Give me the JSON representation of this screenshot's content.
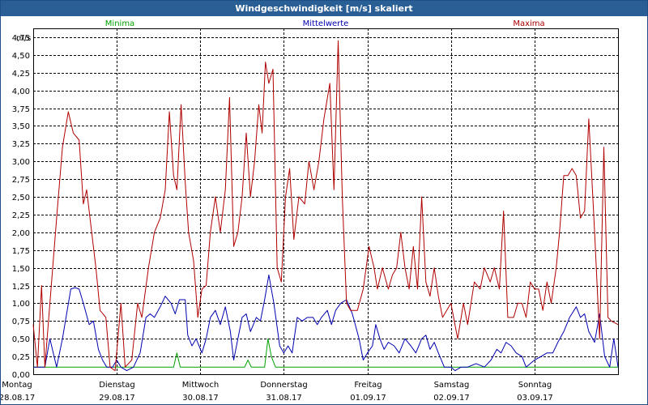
{
  "window": {
    "title": "Windgeschwindigkeit [m/s] skaliert"
  },
  "chart_data": {
    "type": "line",
    "title": "Windgeschwindigkeit [m/s] skaliert",
    "ylabel": "m/s",
    "ylim": [
      0,
      4.875
    ],
    "y_ticks": [
      "0,00",
      "0,25",
      "0,50",
      "0,75",
      "1,00",
      "1,25",
      "1,50",
      "1,75",
      "2,00",
      "2,25",
      "2,50",
      "2,75",
      "3,00",
      "3,25",
      "3,50",
      "3,75",
      "4,00",
      "4,25",
      "4,50",
      "4,75"
    ],
    "x_range": [
      0,
      7
    ],
    "x_ticks": [
      {
        "day": "Montag",
        "date": "28.08.17"
      },
      {
        "day": "Dienstag",
        "date": "29.08.17"
      },
      {
        "day": "Mittwoch",
        "date": "30.08.17"
      },
      {
        "day": "Donnerstag",
        "date": "31.08.17"
      },
      {
        "day": "Freitag",
        "date": "01.09.17"
      },
      {
        "day": "Samstag",
        "date": "02.09.17"
      },
      {
        "day": "Sonntag",
        "date": "03.09.17"
      }
    ],
    "grid": true,
    "series": [
      {
        "name": "Minima",
        "color": "#00a000",
        "points": [
          [
            0,
            0.1
          ],
          [
            1.68,
            0.1
          ],
          [
            1.72,
            0.3
          ],
          [
            1.76,
            0.1
          ],
          [
            2.53,
            0.1
          ],
          [
            2.57,
            0.2
          ],
          [
            2.61,
            0.1
          ],
          [
            2.77,
            0.1
          ],
          [
            2.81,
            0.5
          ],
          [
            2.85,
            0.25
          ],
          [
            2.9,
            0.1
          ],
          [
            7,
            0.1
          ]
        ]
      },
      {
        "name": "Mittelwerte",
        "color": "#0000b0",
        "points": [
          [
            0,
            0.1
          ],
          [
            0.14,
            0.1
          ],
          [
            0.2,
            0.5
          ],
          [
            0.28,
            0.1
          ],
          [
            0.35,
            0.5
          ],
          [
            0.45,
            1.2
          ],
          [
            0.5,
            1.22
          ],
          [
            0.55,
            1.2
          ],
          [
            0.6,
            1.0
          ],
          [
            0.67,
            0.7
          ],
          [
            0.72,
            0.75
          ],
          [
            0.78,
            0.35
          ],
          [
            0.83,
            0.2
          ],
          [
            0.88,
            0.1
          ],
          [
            0.95,
            0.1
          ],
          [
            1.0,
            0.2
          ],
          [
            1.05,
            0.1
          ],
          [
            1.12,
            0.05
          ],
          [
            1.2,
            0.1
          ],
          [
            1.28,
            0.3
          ],
          [
            1.35,
            0.8
          ],
          [
            1.4,
            0.85
          ],
          [
            1.45,
            0.8
          ],
          [
            1.52,
            0.95
          ],
          [
            1.58,
            1.1
          ],
          [
            1.65,
            1.0
          ],
          [
            1.7,
            0.85
          ],
          [
            1.75,
            1.05
          ],
          [
            1.82,
            1.05
          ],
          [
            1.85,
            0.55
          ],
          [
            1.9,
            0.4
          ],
          [
            1.95,
            0.5
          ],
          [
            2.02,
            0.3
          ],
          [
            2.07,
            0.5
          ],
          [
            2.12,
            0.8
          ],
          [
            2.18,
            0.9
          ],
          [
            2.24,
            0.7
          ],
          [
            2.3,
            0.95
          ],
          [
            2.36,
            0.6
          ],
          [
            2.4,
            0.2
          ],
          [
            2.45,
            0.5
          ],
          [
            2.5,
            0.8
          ],
          [
            2.55,
            0.85
          ],
          [
            2.6,
            0.6
          ],
          [
            2.67,
            0.8
          ],
          [
            2.72,
            0.75
          ],
          [
            2.77,
            1.05
          ],
          [
            2.82,
            1.4
          ],
          [
            2.88,
            1.0
          ],
          [
            2.95,
            0.4
          ],
          [
            3.0,
            0.3
          ],
          [
            3.05,
            0.4
          ],
          [
            3.1,
            0.3
          ],
          [
            3.16,
            0.8
          ],
          [
            3.22,
            0.75
          ],
          [
            3.28,
            0.8
          ],
          [
            3.35,
            0.8
          ],
          [
            3.4,
            0.7
          ],
          [
            3.45,
            0.8
          ],
          [
            3.52,
            0.9
          ],
          [
            3.57,
            0.7
          ],
          [
            3.62,
            0.9
          ],
          [
            3.68,
            1.0
          ],
          [
            3.75,
            1.05
          ],
          [
            3.82,
            0.85
          ],
          [
            3.9,
            0.5
          ],
          [
            3.95,
            0.2
          ],
          [
            4.0,
            0.3
          ],
          [
            4.06,
            0.4
          ],
          [
            4.1,
            0.7
          ],
          [
            4.15,
            0.5
          ],
          [
            4.2,
            0.35
          ],
          [
            4.25,
            0.45
          ],
          [
            4.32,
            0.4
          ],
          [
            4.38,
            0.3
          ],
          [
            4.45,
            0.5
          ],
          [
            4.52,
            0.4
          ],
          [
            4.58,
            0.3
          ],
          [
            4.65,
            0.5
          ],
          [
            4.7,
            0.55
          ],
          [
            4.75,
            0.35
          ],
          [
            4.8,
            0.45
          ],
          [
            4.85,
            0.3
          ],
          [
            4.92,
            0.1
          ],
          [
            5.0,
            0.1
          ],
          [
            5.05,
            0.05
          ],
          [
            5.12,
            0.1
          ],
          [
            5.2,
            0.1
          ],
          [
            5.3,
            0.15
          ],
          [
            5.4,
            0.1
          ],
          [
            5.48,
            0.2
          ],
          [
            5.55,
            0.35
          ],
          [
            5.6,
            0.3
          ],
          [
            5.66,
            0.45
          ],
          [
            5.72,
            0.4
          ],
          [
            5.78,
            0.3
          ],
          [
            5.85,
            0.25
          ],
          [
            5.9,
            0.1
          ],
          [
            6.0,
            0.2
          ],
          [
            6.08,
            0.25
          ],
          [
            6.15,
            0.3
          ],
          [
            6.22,
            0.3
          ],
          [
            6.28,
            0.45
          ],
          [
            6.35,
            0.6
          ],
          [
            6.42,
            0.8
          ],
          [
            6.5,
            0.95
          ],
          [
            6.55,
            0.8
          ],
          [
            6.6,
            0.85
          ],
          [
            6.65,
            0.6
          ],
          [
            6.72,
            0.45
          ],
          [
            6.78,
            0.85
          ],
          [
            6.84,
            0.25
          ],
          [
            6.9,
            0.1
          ],
          [
            6.95,
            0.5
          ],
          [
            7.0,
            0.1
          ]
        ]
      },
      {
        "name": "Maxima",
        "color": "#b00000",
        "points": [
          [
            0,
            0.7
          ],
          [
            0.05,
            0.1
          ],
          [
            0.1,
            1.25
          ],
          [
            0.14,
            0.1
          ],
          [
            0.2,
            1.0
          ],
          [
            0.28,
            2.2
          ],
          [
            0.35,
            3.2
          ],
          [
            0.42,
            3.7
          ],
          [
            0.48,
            3.4
          ],
          [
            0.55,
            3.3
          ],
          [
            0.6,
            2.4
          ],
          [
            0.64,
            2.6
          ],
          [
            0.7,
            2.0
          ],
          [
            0.75,
            1.5
          ],
          [
            0.8,
            0.9
          ],
          [
            0.87,
            0.8
          ],
          [
            0.92,
            0.1
          ],
          [
            0.98,
            0.05
          ],
          [
            1.05,
            1.0
          ],
          [
            1.1,
            0.1
          ],
          [
            1.18,
            0.2
          ],
          [
            1.25,
            1.0
          ],
          [
            1.3,
            0.8
          ],
          [
            1.38,
            1.5
          ],
          [
            1.45,
            2.0
          ],
          [
            1.52,
            2.2
          ],
          [
            1.58,
            2.6
          ],
          [
            1.63,
            3.7
          ],
          [
            1.68,
            2.8
          ],
          [
            1.72,
            2.6
          ],
          [
            1.77,
            3.8
          ],
          [
            1.82,
            2.7
          ],
          [
            1.86,
            2.0
          ],
          [
            1.92,
            1.6
          ],
          [
            1.97,
            0.8
          ],
          [
            2.02,
            1.2
          ],
          [
            2.07,
            1.25
          ],
          [
            2.12,
            2.0
          ],
          [
            2.18,
            2.5
          ],
          [
            2.24,
            2.0
          ],
          [
            2.3,
            2.6
          ],
          [
            2.35,
            3.9
          ],
          [
            2.4,
            1.8
          ],
          [
            2.45,
            2.0
          ],
          [
            2.5,
            2.5
          ],
          [
            2.55,
            3.4
          ],
          [
            2.6,
            2.5
          ],
          [
            2.65,
            3.0
          ],
          [
            2.7,
            3.8
          ],
          [
            2.74,
            3.4
          ],
          [
            2.78,
            4.4
          ],
          [
            2.82,
            4.1
          ],
          [
            2.87,
            4.3
          ],
          [
            2.92,
            1.5
          ],
          [
            2.97,
            1.3
          ],
          [
            3.02,
            2.5
          ],
          [
            3.07,
            2.9
          ],
          [
            3.12,
            1.9
          ],
          [
            3.18,
            2.5
          ],
          [
            3.25,
            2.4
          ],
          [
            3.3,
            3.0
          ],
          [
            3.36,
            2.6
          ],
          [
            3.42,
            3.0
          ],
          [
            3.48,
            3.6
          ],
          [
            3.55,
            4.1
          ],
          [
            3.6,
            2.6
          ],
          [
            3.65,
            4.7
          ],
          [
            3.7,
            2.5
          ],
          [
            3.75,
            1.0
          ],
          [
            3.8,
            0.9
          ],
          [
            3.88,
            0.9
          ],
          [
            3.95,
            1.2
          ],
          [
            4.02,
            1.8
          ],
          [
            4.08,
            1.5
          ],
          [
            4.12,
            1.2
          ],
          [
            4.18,
            1.5
          ],
          [
            4.25,
            1.2
          ],
          [
            4.3,
            1.4
          ],
          [
            4.35,
            1.5
          ],
          [
            4.4,
            2.0
          ],
          [
            4.45,
            1.5
          ],
          [
            4.5,
            1.2
          ],
          [
            4.55,
            1.8
          ],
          [
            4.6,
            1.2
          ],
          [
            4.65,
            2.5
          ],
          [
            4.7,
            1.3
          ],
          [
            4.75,
            1.1
          ],
          [
            4.8,
            1.5
          ],
          [
            4.85,
            1.1
          ],
          [
            4.9,
            0.8
          ],
          [
            5.0,
            1.0
          ],
          [
            5.08,
            0.5
          ],
          [
            5.15,
            1.0
          ],
          [
            5.2,
            0.7
          ],
          [
            5.28,
            1.3
          ],
          [
            5.35,
            1.2
          ],
          [
            5.4,
            1.5
          ],
          [
            5.47,
            1.3
          ],
          [
            5.52,
            1.5
          ],
          [
            5.58,
            1.2
          ],
          [
            5.63,
            2.3
          ],
          [
            5.68,
            0.8
          ],
          [
            5.75,
            0.8
          ],
          [
            5.8,
            1.0
          ],
          [
            5.85,
            1.0
          ],
          [
            5.9,
            0.8
          ],
          [
            5.95,
            1.3
          ],
          [
            6.0,
            1.2
          ],
          [
            6.05,
            1.2
          ],
          [
            6.1,
            0.9
          ],
          [
            6.15,
            1.3
          ],
          [
            6.2,
            1.0
          ],
          [
            6.26,
            1.5
          ],
          [
            6.3,
            2.0
          ],
          [
            6.35,
            2.8
          ],
          [
            6.4,
            2.8
          ],
          [
            6.45,
            2.9
          ],
          [
            6.5,
            2.8
          ],
          [
            6.55,
            2.2
          ],
          [
            6.6,
            2.3
          ],
          [
            6.65,
            3.6
          ],
          [
            6.72,
            2.0
          ],
          [
            6.78,
            0.5
          ],
          [
            6.83,
            3.2
          ],
          [
            6.88,
            0.8
          ],
          [
            6.92,
            0.75
          ],
          [
            7.0,
            0.7
          ]
        ]
      }
    ]
  }
}
